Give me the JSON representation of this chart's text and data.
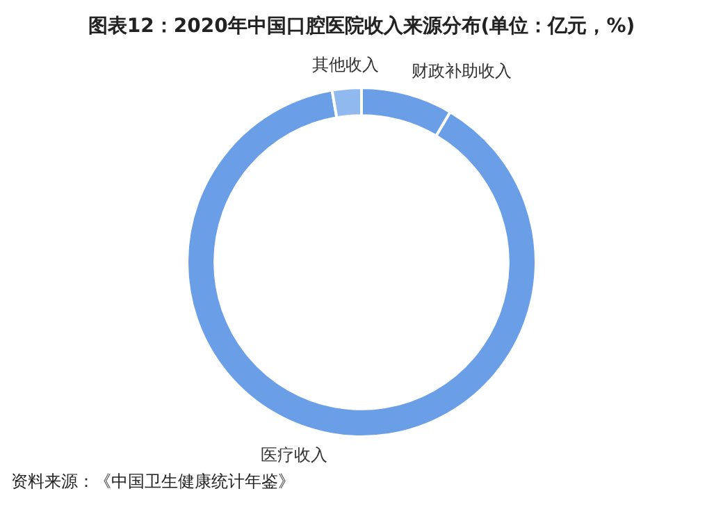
{
  "chart_data": {
    "type": "donut",
    "title": "图表12：2020年中国口腔医院收入来源分布(单位：亿元，%)",
    "categories": [
      "财政补助收入",
      "医疗收入",
      "其他收入"
    ],
    "values": [
      8.5,
      88.8,
      2.7
    ],
    "colors": [
      "#6a9ee6",
      "#6a9ee6",
      "#8fb9ef"
    ],
    "legend": false,
    "annotations": [
      "资料来源：《中国卫生健康统计年鉴》"
    ]
  }
}
